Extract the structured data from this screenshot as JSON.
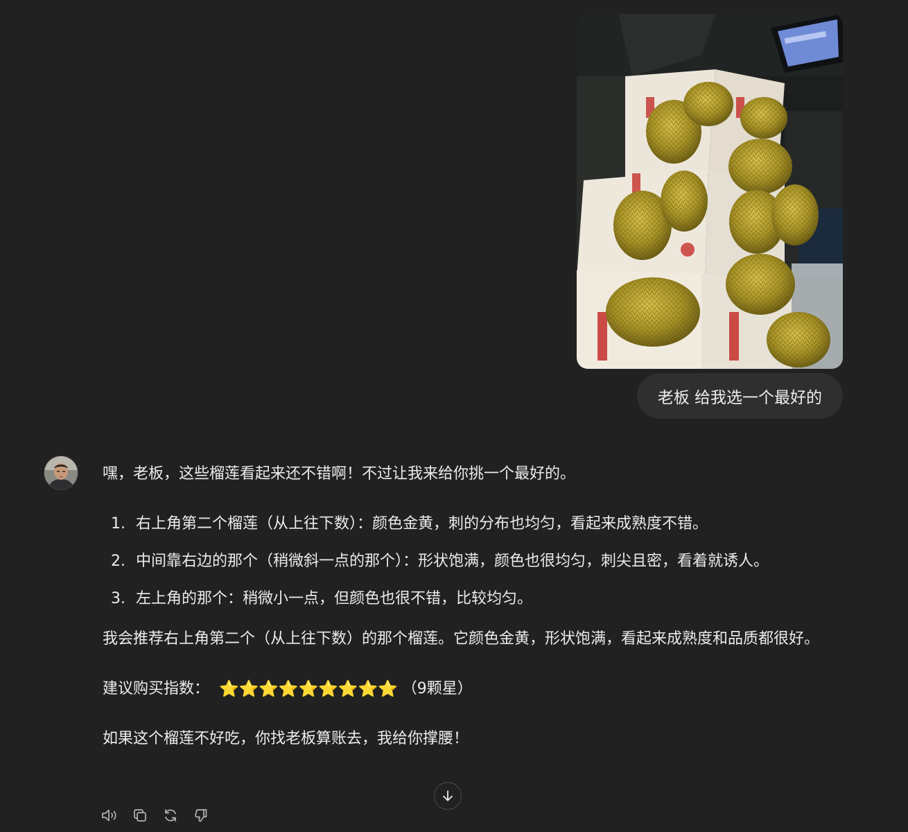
{
  "user_message": {
    "image": {
      "description_icon": "durian-photo"
    },
    "text": "老板 给我选一个最好的"
  },
  "assistant": {
    "avatar_icon": "user-avatar-photo",
    "intro": "嘿，老板，这些榴莲看起来还不错啊！不过让我来给你挑一个最好的。",
    "list": [
      {
        "num": "1.",
        "text": "右上角第二个榴莲（从上往下数）：颜色金黄，刺的分布也均匀，看起来成熟度不错。"
      },
      {
        "num": "2.",
        "text": "中间靠右边的那个（稍微斜一点的那个）：形状饱满，颜色也很均匀，刺尖且密，看着就诱人。"
      },
      {
        "num": "3.",
        "text": "左上角的那个：稍微小一点，但颜色也很不错，比较均匀。"
      }
    ],
    "recommendation": "我会推荐右上角第二个（从上往下数）的那个榴莲。它颜色金黄，形状饱满，看起来成熟度和品质都很好。",
    "rating_label": "建议购买指数：",
    "rating_stars": "⭐⭐⭐⭐⭐⭐⭐⭐⭐",
    "rating_value": 9,
    "rating_note": "（9颗星）",
    "closing": "如果这个榴莲不好吃，你找老板算账去，我给你撑腰！"
  },
  "actions": {
    "read_aloud_icon": "speaker-icon",
    "copy_icon": "copy-icon",
    "regenerate_icon": "refresh-icon",
    "dislike_icon": "thumbs-down-icon"
  },
  "scroll_down_icon": "arrow-down-icon"
}
